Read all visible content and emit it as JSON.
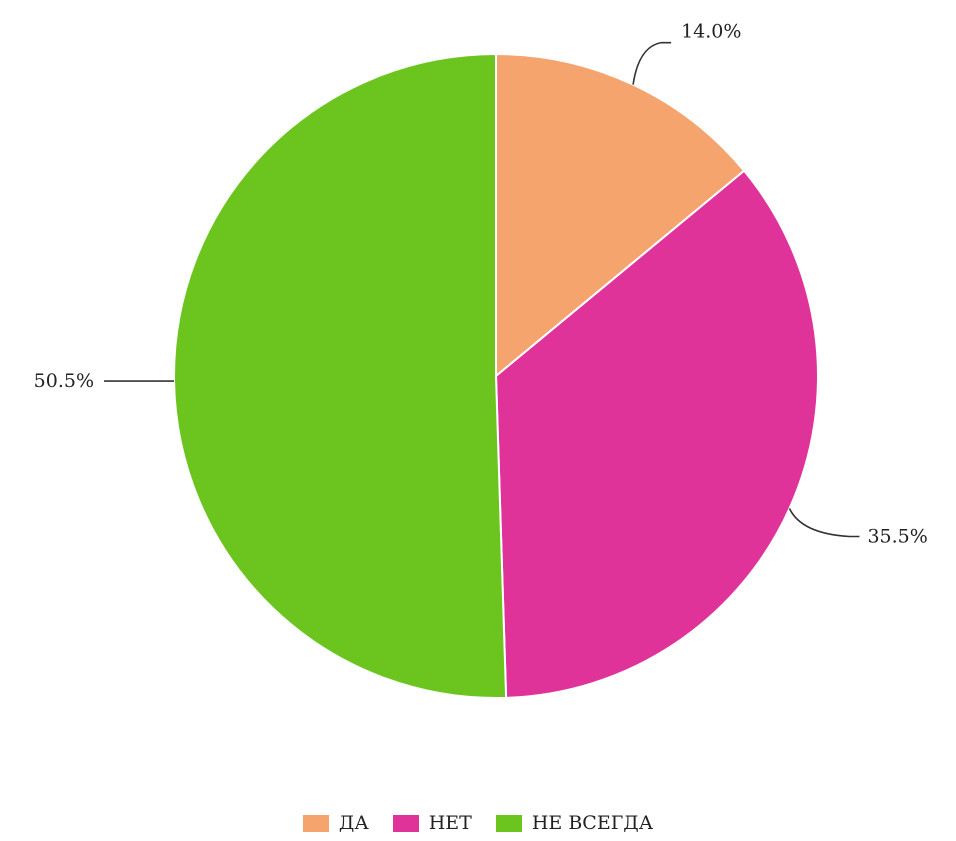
{
  "chart_data": {
    "type": "pie",
    "categories": [
      "ДА",
      "НЕТ",
      "НЕ ВСЕГДА"
    ],
    "values": [
      14.0,
      35.5,
      50.5
    ],
    "value_labels": [
      "14.0%",
      "35.5%",
      "50.5%"
    ],
    "colors": [
      "#F5A46E",
      "#E0339A",
      "#6CC51E"
    ],
    "start_angle": "12 o'clock",
    "direction": "clockwise",
    "legend_position": "bottom"
  }
}
